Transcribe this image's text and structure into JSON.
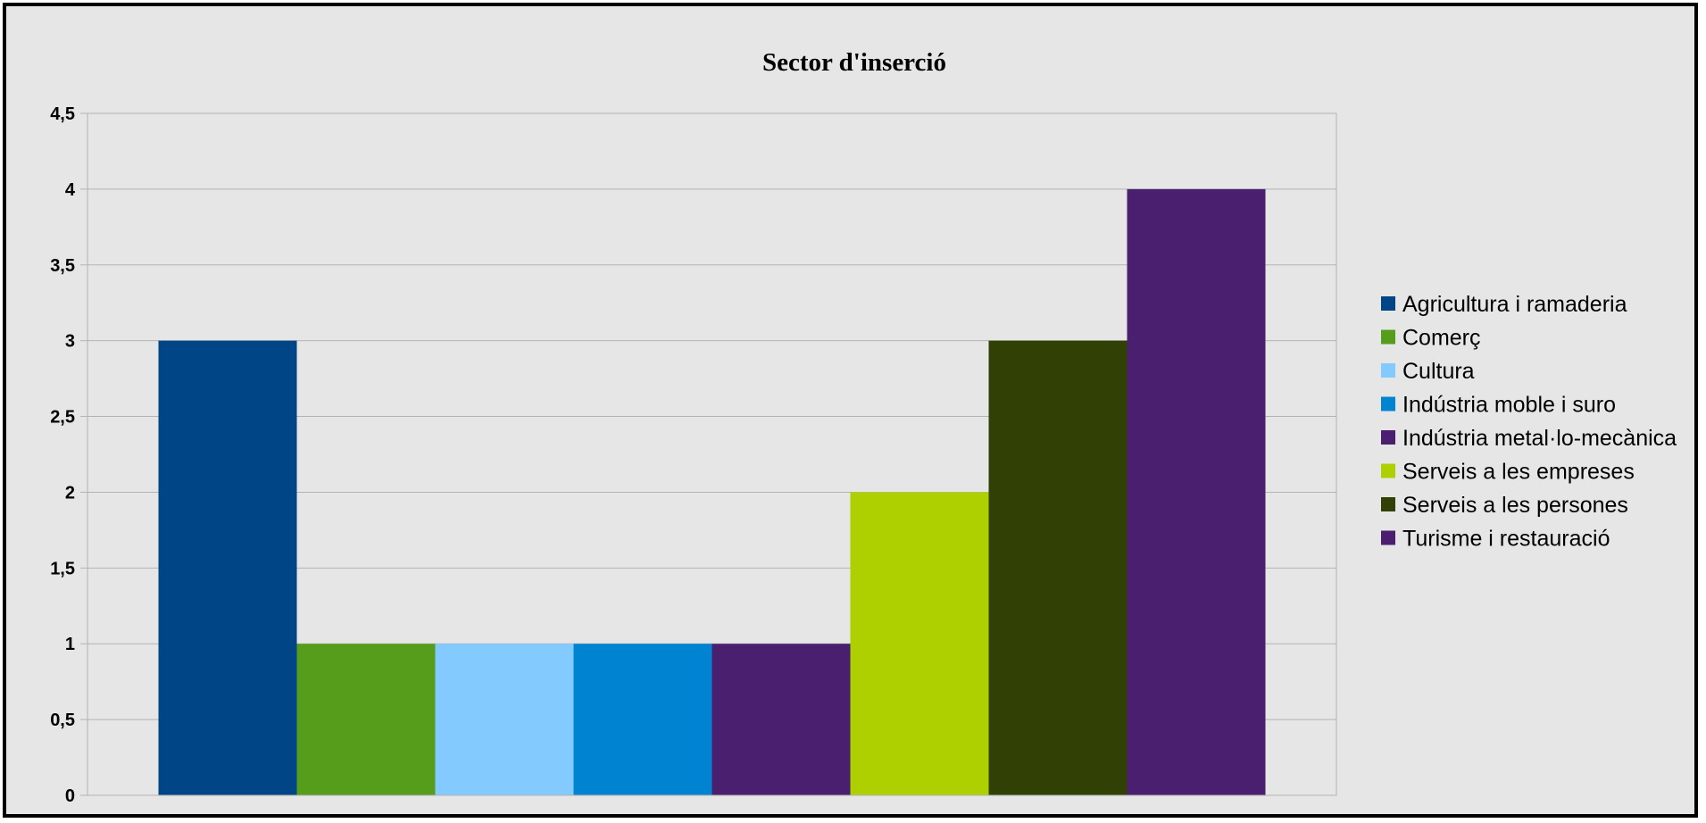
{
  "chart_data": {
    "type": "bar",
    "title": "Sector d'inserció",
    "xlabel": "",
    "ylabel": "",
    "ylim": [
      0,
      4.5
    ],
    "y_ticks": [
      "0",
      "0,5",
      "1",
      "1,5",
      "2",
      "2,5",
      "3",
      "3,5",
      "4",
      "4,5"
    ],
    "grid": true,
    "legend_position": "right",
    "series": [
      {
        "name": "Agricultura i ramaderia",
        "value": 3,
        "color": "#004586"
      },
      {
        "name": "Comerç",
        "value": 1,
        "color": "#579d1c"
      },
      {
        "name": "Cultura",
        "value": 1,
        "color": "#83caff"
      },
      {
        "name": "Indústria moble i suro",
        "value": 1,
        "color": "#0084d1"
      },
      {
        "name": "Indústria metal·lo-mecànica",
        "value": 1,
        "color": "#4b1f6f"
      },
      {
        "name": "Serveis a les empreses",
        "value": 2,
        "color": "#aecf00"
      },
      {
        "name": "Serveis a les persones",
        "value": 3,
        "color": "#314004"
      },
      {
        "name": "Turisme i restauració",
        "value": 4,
        "color": "#4b1f6f"
      }
    ]
  }
}
